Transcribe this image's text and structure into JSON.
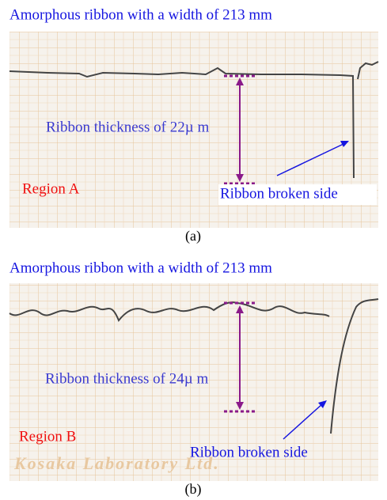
{
  "panels": [
    {
      "title": "Amorphous ribbon with a width of 213 mm",
      "thickness_label": "Ribbon thickness of 22µ m",
      "region_label": "Region A",
      "broken_label": "Ribbon broken side",
      "caption": "(a)"
    },
    {
      "title": "Amorphous ribbon with a width of 213 mm",
      "thickness_label": "Ribbon thickness of 24µ m",
      "region_label": "Region B",
      "broken_label": "Ribbon broken side",
      "caption": "(b)",
      "watermark": "Kosaka Laboratory Ltd."
    }
  ]
}
